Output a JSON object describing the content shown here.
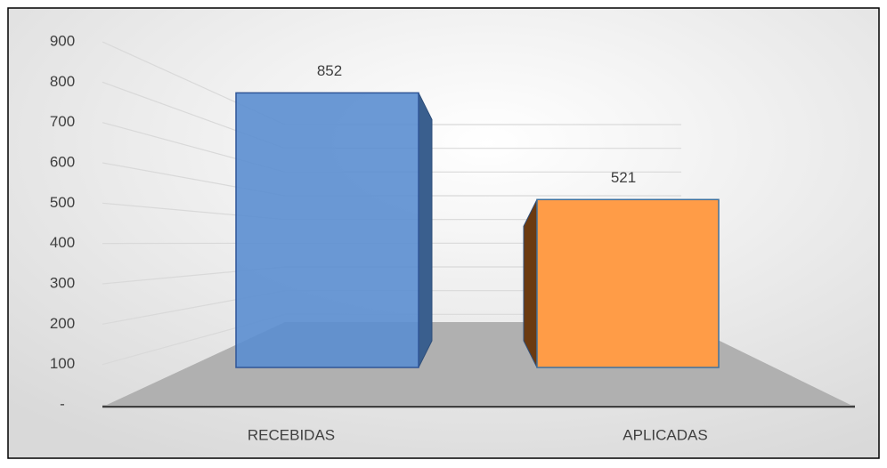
{
  "chart_data": {
    "type": "bar3d",
    "categories": [
      "RECEBIDAS",
      "APLICADAS"
    ],
    "values": [
      852,
      521
    ],
    "colors": [
      "#5b8ed0",
      "#ff9c47"
    ],
    "ylim": [
      0,
      900
    ],
    "yticks": [
      {
        "value": 0,
        "label": "-"
      },
      100,
      200,
      300,
      400,
      500,
      600,
      700,
      800,
      900
    ],
    "grid": true
  }
}
